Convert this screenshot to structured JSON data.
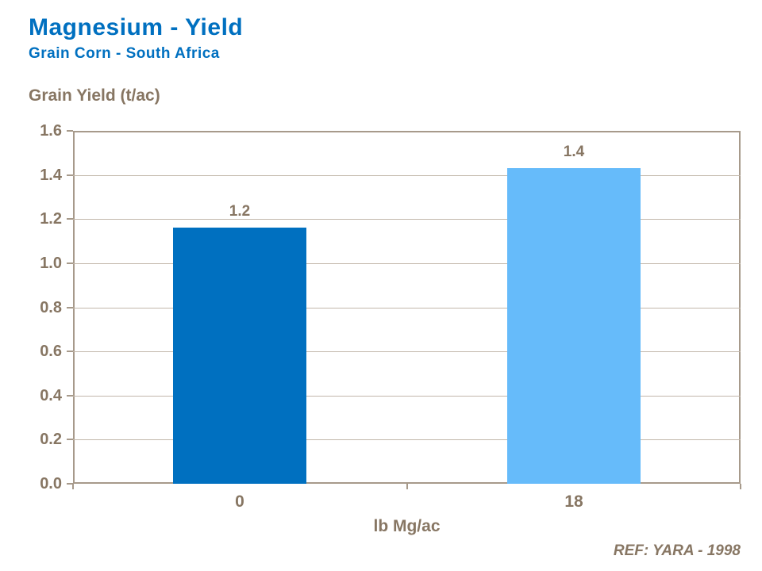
{
  "footer": {
    "reference": "REF: YARA - 1998"
  },
  "chart_data": {
    "type": "bar",
    "title": "Magnesium - Yield",
    "subtitle": "Grain Corn - South Africa",
    "ylabel": "Grain Yield (t/ac)",
    "xlabel": "lb Mg/ac",
    "categories": [
      "0",
      "18"
    ],
    "values": [
      1.16,
      1.43
    ],
    "data_labels": [
      "1.2",
      "1.4"
    ],
    "bar_colors": [
      "#0070C0",
      "#66BBFA"
    ],
    "ylim": [
      0,
      1.6
    ],
    "ytick_labels": [
      "0.0",
      "0.2",
      "0.4",
      "0.6",
      "0.8",
      "1.0",
      "1.2",
      "1.4",
      "1.6"
    ],
    "grid": true,
    "legend": false,
    "colors": {
      "title": "#0070C0",
      "text": "#877663",
      "axis": "#A79A8B",
      "grid": "#C2B7AA"
    }
  }
}
